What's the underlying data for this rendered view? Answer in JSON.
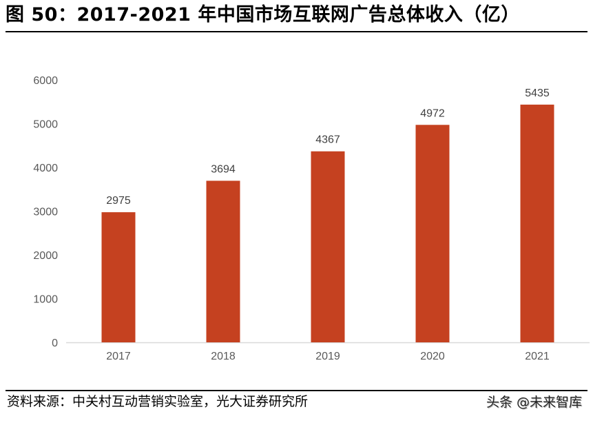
{
  "figure": {
    "title": "图 50：2017-2021 年中国市场互联网广告总体收入（亿）",
    "source": "资料来源：中关村互动营销实验室，光大证券研究所",
    "watermark": "头条 @未来智库"
  },
  "chart_data": {
    "type": "bar",
    "title": "",
    "xlabel": "",
    "ylabel": "",
    "categories": [
      "2017",
      "2018",
      "2019",
      "2020",
      "2021"
    ],
    "values": [
      2975,
      3694,
      4367,
      4972,
      5435
    ],
    "ylim": [
      0,
      6000
    ],
    "yticks": [
      "0",
      "1000",
      "2000",
      "3000",
      "4000",
      "5000",
      "6000"
    ],
    "grid": false,
    "bar_color": "#c54120",
    "axis_color": "#d9d9d9",
    "label_color": "#595959"
  }
}
